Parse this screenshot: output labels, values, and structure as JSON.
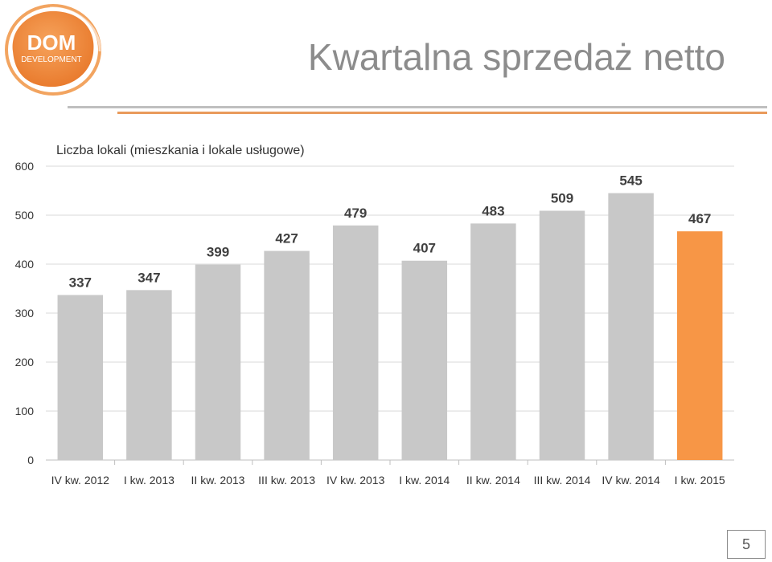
{
  "header": {
    "title": "Kwartalna sprzedaż netto",
    "logo_text_main": "DOM",
    "logo_text_sub": "DEVELOPMENT"
  },
  "page_number": "5",
  "colors": {
    "bar_default": "#c8c8c8",
    "bar_highlight": "#f79646",
    "title": "#8c8c8c",
    "accent_rule": "#e99a5b"
  },
  "chart_data": {
    "type": "bar",
    "title": "Liczba lokali (mieszkania i lokale usługowe)",
    "xlabel": "",
    "ylabel": "",
    "categories": [
      "IV kw. 2012",
      "I kw. 2013",
      "II kw. 2013",
      "III kw. 2013",
      "IV kw. 2013",
      "I kw. 2014",
      "II kw. 2014",
      "III kw. 2014",
      "IV kw. 2014",
      "I kw. 2015"
    ],
    "values": [
      337,
      347,
      399,
      427,
      479,
      407,
      483,
      509,
      545,
      467
    ],
    "highlight_index": 9,
    "ylim": [
      0,
      600
    ],
    "yticks": [
      0,
      100,
      200,
      300,
      400,
      500,
      600
    ],
    "grid": true,
    "data_labels": true
  }
}
